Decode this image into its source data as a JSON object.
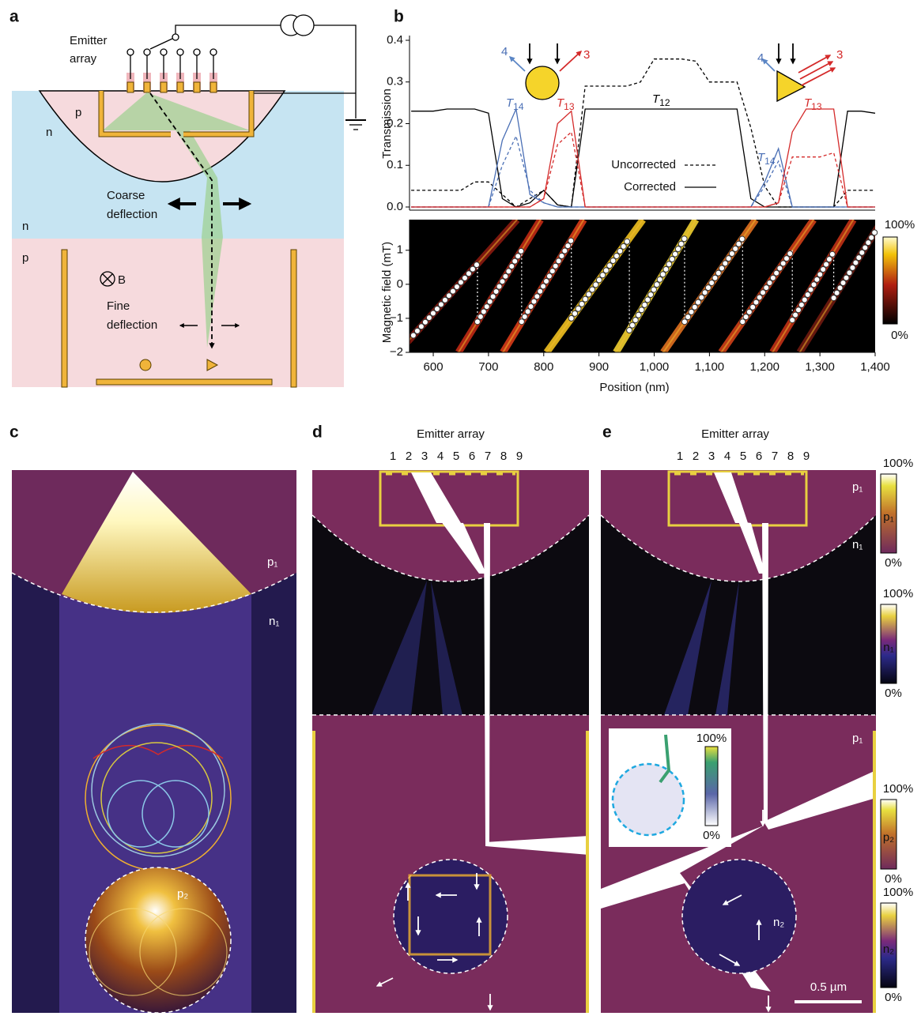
{
  "panel_labels": [
    "a",
    "b",
    "c",
    "d",
    "e"
  ],
  "panel_a": {
    "emitter_array": [
      "Emitter",
      "array"
    ],
    "regions": [
      "p",
      "n",
      "n",
      "p"
    ],
    "coarse": [
      "Coarse",
      "deflection"
    ],
    "field": "B",
    "fine": [
      "Fine",
      "deflection"
    ]
  },
  "chart_data": [
    {
      "type": "line",
      "ylabel": "Transmission",
      "x": [
        560,
        600,
        625,
        650,
        675,
        700,
        725,
        750,
        775,
        800,
        825,
        850,
        875,
        900,
        925,
        950,
        975,
        1000,
        1025,
        1050,
        1075,
        1100,
        1125,
        1150,
        1175,
        1200,
        1225,
        1250,
        1275,
        1300,
        1325,
        1350,
        1375,
        1400
      ],
      "xlim": [
        557,
        1400
      ],
      "ylim": [
        0,
        0.4
      ],
      "yticks": [
        {
          "value": 0,
          "label": "0.0"
        },
        0.1,
        0.2,
        0.3,
        0.4
      ],
      "series": [
        {
          "color": "#000000",
          "style": "dashed",
          "values": [
            0.04,
            0.04,
            0.04,
            0.04,
            0.06,
            0.06,
            0.03,
            0.0,
            0.02,
            0.04,
            0.005,
            0.0,
            0.29,
            0.29,
            0.29,
            0.29,
            0.3,
            0.355,
            0.355,
            0.355,
            0.35,
            0.3,
            0.3,
            0.3,
            0.19,
            0.05,
            0.0,
            0.0,
            0.0,
            0.0,
            0.0,
            0.04,
            0.04,
            0.04
          ]
        },
        {
          "color": "#000000",
          "style": "solid",
          "values": [
            0.23,
            0.23,
            0.235,
            0.235,
            0.235,
            0.225,
            0.02,
            0.0,
            0.01,
            0.04,
            0.005,
            0.0,
            0.235,
            0.235,
            0.235,
            0.235,
            0.235,
            0.235,
            0.235,
            0.235,
            0.235,
            0.235,
            0.235,
            0.235,
            0.02,
            0.0,
            0.0,
            0.0,
            0.0,
            0.0,
            0.0,
            0.23,
            0.23,
            0.225
          ]
        },
        {
          "color": "#4a6fb5",
          "style": "dashed",
          "values": [
            0,
            0,
            0,
            0,
            0,
            0,
            0.1,
            0.17,
            0.04,
            0.01,
            0,
            0,
            0,
            0,
            0,
            0,
            0,
            0,
            0,
            0,
            0,
            0,
            0,
            0,
            0,
            0.05,
            0.11,
            0,
            0,
            0,
            0,
            0,
            0,
            0
          ]
        },
        {
          "color": "#4a6fb5",
          "style": "solid",
          "values": [
            0,
            0,
            0,
            0,
            0,
            0,
            0.16,
            0.235,
            0.03,
            0.01,
            0,
            0,
            0,
            0,
            0,
            0,
            0,
            0,
            0,
            0,
            0,
            0,
            0,
            0,
            0,
            0.06,
            0.14,
            0,
            0,
            0,
            0,
            0,
            0,
            0
          ]
        },
        {
          "color": "#d42a2a",
          "style": "dashed",
          "values": [
            0,
            0,
            0,
            0,
            0,
            0,
            0,
            0,
            0,
            0.02,
            0.15,
            0.18,
            0,
            0,
            0,
            0,
            0,
            0,
            0,
            0,
            0,
            0,
            0,
            0,
            0,
            0,
            0.01,
            0.12,
            0.12,
            0.12,
            0.13,
            0,
            0,
            0
          ]
        },
        {
          "color": "#d42a2a",
          "style": "solid",
          "values": [
            0,
            0,
            0,
            0,
            0,
            0,
            0,
            0,
            0,
            0.02,
            0.2,
            0.23,
            0,
            0,
            0,
            0,
            0,
            0,
            0,
            0,
            0,
            0,
            0,
            0,
            0,
            0,
            0.01,
            0.18,
            0.235,
            0.235,
            0.235,
            0,
            0,
            0
          ]
        }
      ],
      "legend": [
        {
          "label": "Uncorrected",
          "style": "dashed"
        },
        {
          "label": "Corrected",
          "style": "solid"
        }
      ],
      "annotations": [
        {
          "text": "4",
          "color": "#4a6fb5"
        },
        {
          "text": "3",
          "color": "#d42a2a"
        },
        {
          "text": "4",
          "color": "#4a6fb5"
        },
        {
          "text": "3",
          "color": "#d42a2a"
        },
        {
          "text": "T",
          "sub": "14",
          "color": "#4a6fb5"
        },
        {
          "text": "T",
          "sub": "13",
          "color": "#d42a2a"
        },
        {
          "text": "T",
          "sub": "12",
          "color": "#000000"
        },
        {
          "text": "T",
          "sub": "14",
          "color": "#4a6fb5"
        },
        {
          "text": "T",
          "sub": "13",
          "color": "#d42a2a"
        }
      ]
    },
    {
      "type": "heatmap",
      "xlabel": "Position (nm)",
      "ylabel": "Magnetic field (mT)",
      "xlim": [
        557,
        1400
      ],
      "ylim": [
        -2,
        1.9
      ],
      "xticks": [
        600,
        700,
        800,
        900,
        {
          "value": 1000,
          "label": "1,000"
        },
        {
          "value": 1100,
          "label": "1,100"
        },
        {
          "value": 1200,
          "label": "1,200"
        },
        {
          "value": 1300,
          "label": "1,300"
        },
        {
          "value": 1400,
          "label": "1,400"
        }
      ],
      "yticks": [
        {
          "value": -2,
          "label": "−2"
        },
        {
          "value": -1,
          "label": "−1"
        },
        0,
        1
      ],
      "branches": [
        {
          "x": [
            564,
            680
          ],
          "y": [
            -1.5,
            0.6
          ]
        },
        {
          "x": [
            680,
            760
          ],
          "y": [
            -1.1,
            1.0
          ]
        },
        {
          "x": [
            760,
            850
          ],
          "y": [
            -1.1,
            1.3
          ]
        },
        {
          "x": [
            850,
            955
          ],
          "y": [
            -1.0,
            1.35
          ]
        },
        {
          "x": [
            955,
            1055
          ],
          "y": [
            -1.35,
            1.35
          ]
        },
        {
          "x": [
            1055,
            1160
          ],
          "y": [
            -1.1,
            1.35
          ]
        },
        {
          "x": [
            1160,
            1250
          ],
          "y": [
            -1.1,
            1.0
          ]
        },
        {
          "x": [
            1250,
            1325
          ],
          "y": [
            -1.05,
            0.95
          ]
        },
        {
          "x": [
            1325,
            1400
          ],
          "y": [
            -0.4,
            1.55
          ]
        }
      ],
      "colorbar": {
        "ticks": [
          {
            "value": 100,
            "label": "100%"
          },
          {
            "value": 0,
            "label": "0%"
          }
        ]
      }
    }
  ],
  "panel_c": {
    "labels": [
      "p₁",
      "n₁",
      "p₂"
    ]
  },
  "panel_d": {
    "title": "Emitter array",
    "emitters": [
      1,
      2,
      3,
      4,
      5,
      6,
      7,
      8,
      9
    ]
  },
  "panel_e": {
    "title": "Emitter array",
    "emitters": [
      1,
      2,
      3,
      4,
      5,
      6,
      7,
      8,
      9
    ],
    "labels": [
      "p₁",
      "n₁",
      "p₁",
      "n₂"
    ],
    "inset_colorbar": [
      "100%",
      "0%"
    ],
    "scale_bar": "0.5 µm"
  },
  "colorbars": [
    {
      "label": "p₁",
      "max": "100%",
      "min": "0%"
    },
    {
      "label": "n₁",
      "max": "100%",
      "min": "0%"
    },
    {
      "label": "p₂",
      "max": "100%",
      "min": "0%"
    },
    {
      "label": "n₂",
      "max": "100%",
      "min": "0%"
    }
  ]
}
